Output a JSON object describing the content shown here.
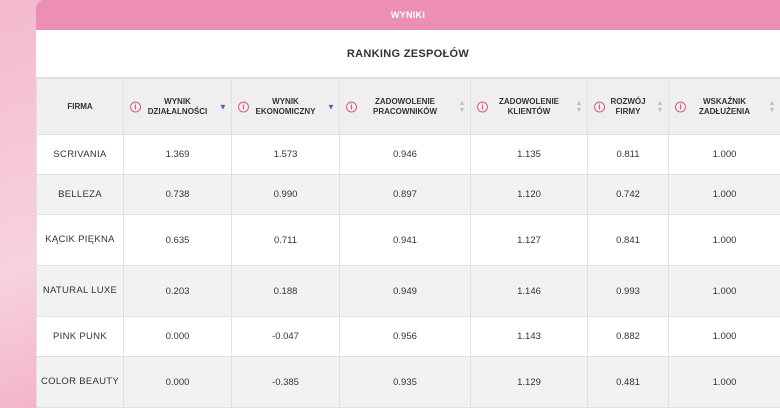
{
  "topbar": {
    "title": "WYNIKI"
  },
  "ranking": {
    "title": "RANKING ZESPOŁÓW"
  },
  "columns": [
    {
      "label": "FIRMA"
    },
    {
      "label": "WYNIK DZIAŁALNOŚCI",
      "sort": "desc"
    },
    {
      "label": "WYNIK EKONOMICZNY",
      "sort": "desc"
    },
    {
      "label": "ZADOWOLENIE PRACOWNIKÓW",
      "sort": "none"
    },
    {
      "label": "ZADOWOLENIE KLIENTÓW",
      "sort": "none"
    },
    {
      "label": "ROZWÓJ FIRMY",
      "sort": "none"
    },
    {
      "label": "WSKAŹNIK ZADŁUŻENIA",
      "sort": "none"
    }
  ],
  "rows": [
    {
      "firma": "SCRIVANIA",
      "values": [
        "1.369",
        "1.573",
        "0.946",
        "1.135",
        "0.811",
        "1.000"
      ]
    },
    {
      "firma": "BELLEZA",
      "values": [
        "0.738",
        "0.990",
        "0.897",
        "1.120",
        "0.742",
        "1.000"
      ]
    },
    {
      "firma": "KĄCIK PIĘKNA",
      "values": [
        "0.635",
        "0.711",
        "0.941",
        "1.127",
        "0.841",
        "1.000"
      ]
    },
    {
      "firma": "NATURAL LUXE",
      "values": [
        "0.203",
        "0.188",
        "0.949",
        "1.146",
        "0.993",
        "1.000"
      ]
    },
    {
      "firma": "PINK PUNK",
      "values": [
        "0.000",
        "-0.047",
        "0.956",
        "1.143",
        "0.882",
        "1.000"
      ]
    },
    {
      "firma": "COLOR BEAUTY",
      "values": [
        "0.000",
        "-0.385",
        "0.935",
        "1.129",
        "0.481",
        "1.000"
      ]
    }
  ],
  "colors": {
    "accent": "#ec8fb2",
    "info": "#e0578d",
    "sort_active": "#4a63c9"
  },
  "icons": {
    "info": "info-circle-icon",
    "sort": "sort-arrows-icon"
  }
}
